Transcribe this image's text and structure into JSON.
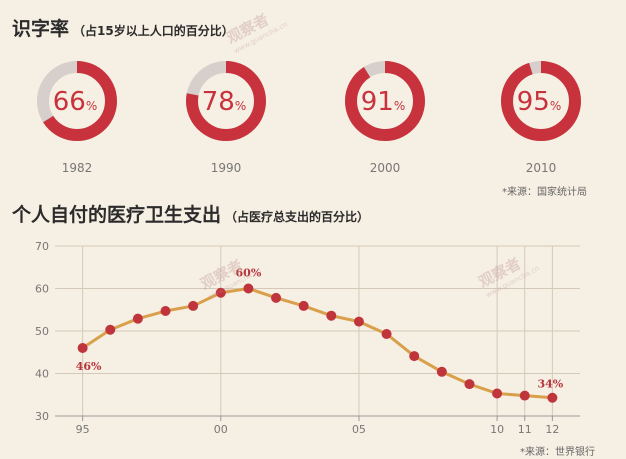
{
  "literacy": {
    "title": "识字率",
    "subtitle": "（占15岁以上人口的百分比）",
    "source": "*来源：国家统计局"
  },
  "spending": {
    "title": "个人自付的医疗卫生支出",
    "subtitle": "（占医疗总支出的百分比）",
    "source": "*来源：世界银行"
  },
  "watermarks": [
    {
      "text": "观察者",
      "sub": "www.guancha.cn"
    },
    {
      "text": "观察者",
      "sub": "www.guancha.cn"
    },
    {
      "text": "观察者",
      "sub": "www.guancha.cn"
    }
  ],
  "colors": {
    "ring_fill": "#c8323c",
    "ring_track": "#d6cfcb",
    "line": "#d9a04c",
    "dot": "#c0343c",
    "label": "#b8333b",
    "grid": "#d4c8b8",
    "background": "#f6efe3"
  },
  "chart_data": [
    {
      "type": "donut",
      "categories": [
        "1982",
        "1990",
        "2000",
        "2010"
      ],
      "values": [
        66,
        78,
        91,
        95
      ],
      "value_labels": [
        "66",
        "78",
        "91",
        "95"
      ],
      "unit": "%"
    },
    {
      "type": "line",
      "x": [
        1995,
        1996,
        1997,
        1998,
        1999,
        2000,
        2001,
        2002,
        2003,
        2004,
        2005,
        2006,
        2007,
        2008,
        2009,
        2010,
        2011,
        2012
      ],
      "y": [
        46,
        50.3,
        52.9,
        54.7,
        55.9,
        59,
        60,
        57.8,
        55.9,
        53.6,
        52.2,
        49.3,
        44.1,
        40.4,
        37.5,
        35.3,
        34.8,
        34.3
      ],
      "ylim": [
        30,
        70
      ],
      "yticks": [
        "30",
        "40",
        "50",
        "60",
        "70"
      ],
      "xticks": [
        {
          "x": 1995,
          "label": "95"
        },
        {
          "x": 2000,
          "label": "00"
        },
        {
          "x": 2005,
          "label": "05"
        },
        {
          "x": 2010,
          "label": "10"
        },
        {
          "x": 2011,
          "label": "11"
        },
        {
          "x": 2012,
          "label": "12"
        }
      ],
      "annotations": [
        {
          "x": 1995,
          "text": "46%"
        },
        {
          "x": 2001,
          "text": "60%"
        },
        {
          "x": 2012,
          "text": "34%"
        }
      ],
      "grid": true
    }
  ]
}
